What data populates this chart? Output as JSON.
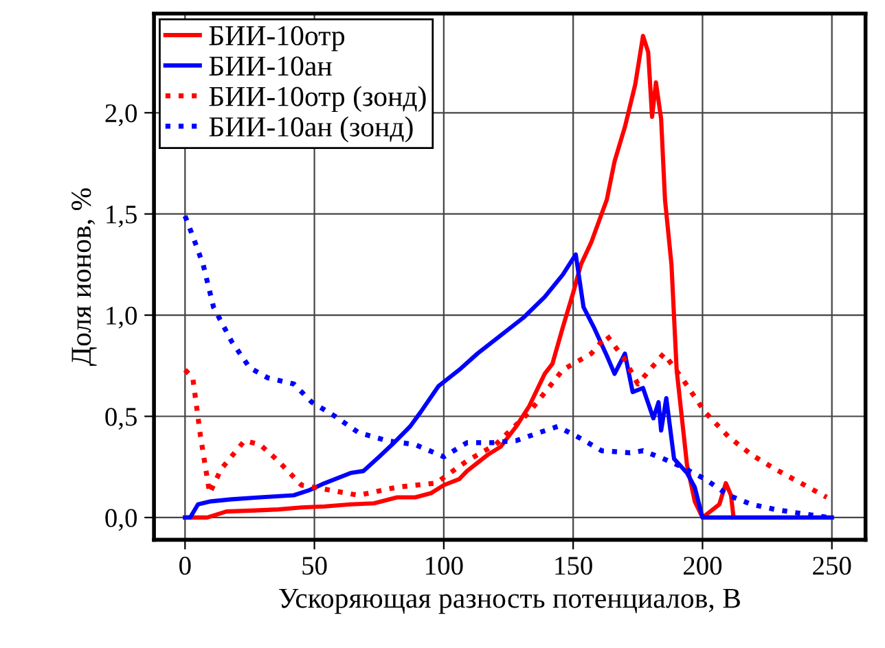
{
  "chart_data": {
    "type": "line",
    "xlabel": "Ускоряющая разность потенциалов, В",
    "ylabel": "Доля ионов, %",
    "xlim": [
      -12,
      263
    ],
    "ylim": [
      -0.11,
      2.49
    ],
    "xticks": [
      0,
      50,
      100,
      150,
      200,
      250
    ],
    "yticks": [
      {
        "value": 0,
        "label": "0,0"
      },
      {
        "value": 0.5,
        "label": "0,5"
      },
      {
        "value": 1,
        "label": "1,0"
      },
      {
        "value": 1.5,
        "label": "1,5"
      },
      {
        "value": 2,
        "label": "2,0"
      }
    ],
    "grid": true,
    "legend": "top left",
    "series": [
      {
        "name": "БИИ-10отр",
        "color": "#ff0000",
        "line_style": "solid",
        "x": [
          0,
          8.6,
          16,
          27,
          36,
          45,
          54,
          64,
          73,
          82,
          89,
          95,
          100,
          106,
          109,
          117,
          122,
          128,
          133,
          139,
          142,
          146,
          150,
          153,
          157,
          163,
          166,
          170,
          174,
          177,
          179,
          180.5,
          182,
          184,
          185.5,
          188,
          190,
          194,
          197,
          200,
          203,
          206.5,
          209,
          211,
          212
        ],
        "values": [
          0,
          0,
          0.03,
          0.035,
          0.04,
          0.05,
          0.055,
          0.065,
          0.07,
          0.1,
          0.1,
          0.12,
          0.16,
          0.19,
          0.23,
          0.31,
          0.35,
          0.45,
          0.55,
          0.71,
          0.76,
          0.94,
          1.11,
          1.25,
          1.36,
          1.57,
          1.76,
          1.93,
          2.14,
          2.38,
          2.3,
          1.98,
          2.15,
          1.97,
          1.57,
          1.25,
          0.73,
          0.26,
          0.08,
          0,
          0.03,
          0.065,
          0.17,
          0.11,
          0
        ]
      },
      {
        "name": "БИИ-10ан",
        "color": "#0000ff",
        "line_style": "solid",
        "x": [
          0,
          2,
          5,
          10,
          18,
          29,
          42,
          48,
          54,
          64,
          69,
          75,
          80,
          87,
          91,
          98,
          106,
          113,
          122,
          131,
          139,
          146,
          151,
          154,
          158,
          163,
          166,
          170,
          173,
          177,
          181,
          183,
          184,
          186,
          189,
          194,
          197,
          200,
          250
        ],
        "values": [
          0,
          0,
          0.065,
          0.08,
          0.09,
          0.1,
          0.11,
          0.135,
          0.17,
          0.22,
          0.23,
          0.3,
          0.36,
          0.45,
          0.52,
          0.65,
          0.73,
          0.81,
          0.9,
          0.99,
          1.09,
          1.2,
          1.3,
          1.04,
          0.94,
          0.8,
          0.71,
          0.81,
          0.62,
          0.64,
          0.49,
          0.57,
          0.43,
          0.59,
          0.29,
          0.22,
          0.15,
          0,
          0
        ]
      },
      {
        "name": "БИИ-10отр (зонд)",
        "color": "#ff0000",
        "line_style": "dotted",
        "x": [
          0,
          3,
          6,
          9.5,
          14,
          23,
          29,
          36,
          45,
          54,
          67,
          82,
          97,
          109,
          120,
          133,
          146,
          157,
          163,
          170,
          175,
          185,
          192,
          201,
          210,
          219,
          228,
          238,
          248
        ],
        "values": [
          0.73,
          0.69,
          0.4,
          0.12,
          0.24,
          0.38,
          0.36,
          0.28,
          0.16,
          0.14,
          0.11,
          0.15,
          0.17,
          0.28,
          0.36,
          0.52,
          0.73,
          0.81,
          0.9,
          0.78,
          0.66,
          0.81,
          0.69,
          0.52,
          0.4,
          0.31,
          0.24,
          0.17,
          0.1
        ]
      },
      {
        "name": "БИИ-10ан (зонд)",
        "color": "#0000ff",
        "line_style": "dotted",
        "x": [
          0,
          3,
          7,
          11,
          18,
          25,
          32,
          42,
          49,
          58,
          67,
          78,
          89,
          100,
          109,
          119,
          128,
          137,
          144,
          153,
          161,
          172,
          177,
          185,
          192,
          201,
          210,
          219,
          228,
          238,
          249
        ],
        "values": [
          1.49,
          1.39,
          1.25,
          1.04,
          0.87,
          0.74,
          0.69,
          0.66,
          0.57,
          0.5,
          0.42,
          0.38,
          0.36,
          0.3,
          0.37,
          0.37,
          0.38,
          0.42,
          0.45,
          0.39,
          0.33,
          0.32,
          0.33,
          0.29,
          0.25,
          0.19,
          0.11,
          0.065,
          0.04,
          0.02,
          0
        ]
      }
    ]
  }
}
